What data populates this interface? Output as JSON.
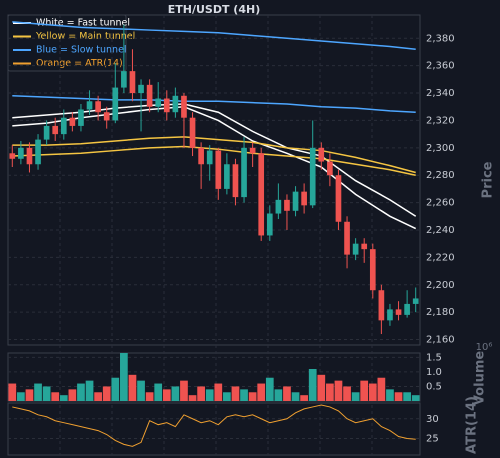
{
  "chart_data": {
    "type": "candlestick",
    "title": "ETH/USDT (4H)",
    "open": [
      2296,
      2292,
      2300,
      2288,
      2306,
      2316,
      2310,
      2322,
      2316,
      2328,
      2334,
      2326,
      2320,
      2344,
      2356,
      2340,
      2346,
      2330,
      2336,
      2326,
      2338,
      2322,
      2300,
      2288,
      2298,
      2270,
      2288,
      2264,
      2300,
      2296,
      2236,
      2252,
      2262,
      2254,
      2268,
      2258,
      2300,
      2290,
      2280,
      2246,
      2222,
      2230,
      2226,
      2196,
      2174,
      2182,
      2178,
      2186
    ],
    "high": [
      2302,
      2305,
      2304,
      2310,
      2320,
      2322,
      2328,
      2326,
      2332,
      2342,
      2338,
      2330,
      2362,
      2390,
      2372,
      2350,
      2350,
      2348,
      2342,
      2344,
      2340,
      2326,
      2304,
      2302,
      2300,
      2296,
      2292,
      2308,
      2304,
      2300,
      2258,
      2274,
      2266,
      2272,
      2274,
      2320,
      2304,
      2296,
      2284,
      2250,
      2234,
      2234,
      2230,
      2200,
      2186,
      2188,
      2196,
      2198
    ],
    "low": [
      2286,
      2288,
      2282,
      2284,
      2302,
      2305,
      2306,
      2312,
      2312,
      2324,
      2320,
      2314,
      2318,
      2340,
      2334,
      2312,
      2326,
      2326,
      2320,
      2322,
      2300,
      2294,
      2270,
      2276,
      2262,
      2266,
      2258,
      2260,
      2286,
      2232,
      2232,
      2248,
      2240,
      2250,
      2252,
      2256,
      2284,
      2272,
      2240,
      2212,
      2218,
      2216,
      2190,
      2164,
      2170,
      2174,
      2176,
      2180
    ],
    "close": [
      2292,
      2300,
      2288,
      2306,
      2316,
      2310,
      2322,
      2316,
      2328,
      2334,
      2326,
      2320,
      2344,
      2356,
      2340,
      2346,
      2330,
      2336,
      2326,
      2338,
      2322,
      2300,
      2288,
      2298,
      2270,
      2288,
      2264,
      2300,
      2296,
      2236,
      2252,
      2262,
      2254,
      2268,
      2258,
      2300,
      2290,
      2280,
      2246,
      2222,
      2230,
      2226,
      2196,
      2174,
      2182,
      2178,
      2186,
      2190
    ],
    "up_color": "#26a69a",
    "down_color": "#ef5350",
    "ylim": [
      2156,
      2397
    ],
    "yticks": [
      {
        "value": 2160,
        "label": "2,160"
      },
      {
        "value": 2180,
        "label": "2,180"
      },
      {
        "value": 2200,
        "label": "2,200"
      },
      {
        "value": 2220,
        "label": "2,220"
      },
      {
        "value": 2240,
        "label": "2,240"
      },
      {
        "value": 2260,
        "label": "2,260"
      },
      {
        "value": 2280,
        "label": "2,280"
      },
      {
        "value": 2300,
        "label": "2,300"
      },
      {
        "value": 2320,
        "label": "2,320"
      },
      {
        "value": 2340,
        "label": "2,340"
      },
      {
        "value": 2360,
        "label": "2,360"
      },
      {
        "value": 2380,
        "label": "2,380"
      }
    ],
    "ylabel": "Price",
    "grid": true,
    "tunnels": [
      {
        "name": "White = Fast tunnel",
        "color": "#ffffff",
        "x": [
          0,
          4,
          8,
          12,
          16,
          20,
          24,
          28,
          32,
          36,
          40,
          44,
          47
        ],
        "upper": [
          2322,
          2324,
          2326,
          2329,
          2331,
          2332,
          2326,
          2312,
          2300,
          2294,
          2276,
          2262,
          2250
        ],
        "lower": [
          2316,
          2318,
          2322,
          2325,
          2328,
          2330,
          2320,
          2305,
          2296,
          2286,
          2266,
          2250,
          2241
        ]
      },
      {
        "name": "Yellow = Main tunnel",
        "color": "#f5c542",
        "x": [
          0,
          4,
          8,
          12,
          16,
          20,
          24,
          28,
          32,
          36,
          40,
          44,
          47
        ],
        "upper": [
          2302,
          2302,
          2303,
          2305,
          2307,
          2308,
          2306,
          2304,
          2300,
          2298,
          2293,
          2287,
          2282
        ],
        "lower": [
          2294,
          2295,
          2296,
          2298,
          2300,
          2301,
          2299,
          2296,
          2294,
          2292,
          2288,
          2284,
          2280
        ]
      },
      {
        "name": "Blue = Slow tunnel",
        "color": "#4da6ff",
        "x": [
          0,
          4,
          8,
          12,
          16,
          20,
          24,
          28,
          32,
          36,
          40,
          44,
          47
        ],
        "upper": [
          2392,
          2390,
          2388,
          2387,
          2386,
          2385,
          2384,
          2382,
          2380,
          2378,
          2376,
          2374,
          2372
        ],
        "lower": [
          2338,
          2337,
          2336,
          2335,
          2335,
          2334,
          2334,
          2333,
          2332,
          2330,
          2329,
          2327,
          2326
        ]
      }
    ],
    "volume": {
      "label": "Volume",
      "offset": "10⁶",
      "ylim": [
        0,
        1.65
      ],
      "yticks": [
        0.5,
        {
          "value": 1,
          "label": "1.0"
        },
        1.5
      ],
      "values": [
        0.6,
        0.3,
        0.4,
        0.6,
        0.5,
        0.3,
        0.2,
        0.4,
        0.6,
        0.7,
        0.3,
        0.5,
        0.8,
        1.65,
        0.9,
        0.7,
        0.3,
        0.6,
        0.4,
        0.5,
        0.7,
        0.2,
        0.5,
        0.4,
        0.6,
        0.3,
        0.5,
        0.4,
        0.3,
        0.6,
        0.8,
        0.4,
        0.5,
        0.3,
        0.2,
        1.1,
        0.9,
        0.6,
        0.7,
        0.5,
        0.3,
        0.7,
        0.6,
        0.8,
        0.4,
        0.3,
        0.3,
        0.2
      ]
    },
    "atr": {
      "name": "Orange = ATR(14)",
      "label": "ATR(14)",
      "color": "#f0a030",
      "ylim": [
        20.8,
        34
      ],
      "yticks": [
        25,
        30
      ],
      "values": [
        33,
        32.5,
        32,
        31,
        30.5,
        29.5,
        29,
        28.5,
        28,
        27.5,
        27,
        26,
        24.5,
        23.5,
        23,
        24,
        29.5,
        28.5,
        29,
        28,
        31,
        30,
        29,
        29.5,
        28.5,
        30.5,
        31,
        30.5,
        31,
        30,
        29,
        29.5,
        30,
        31.5,
        32.5,
        33,
        33.5,
        33,
        32,
        30,
        29,
        29.5,
        30,
        28,
        27,
        25.5,
        25,
        24.8
      ]
    }
  }
}
